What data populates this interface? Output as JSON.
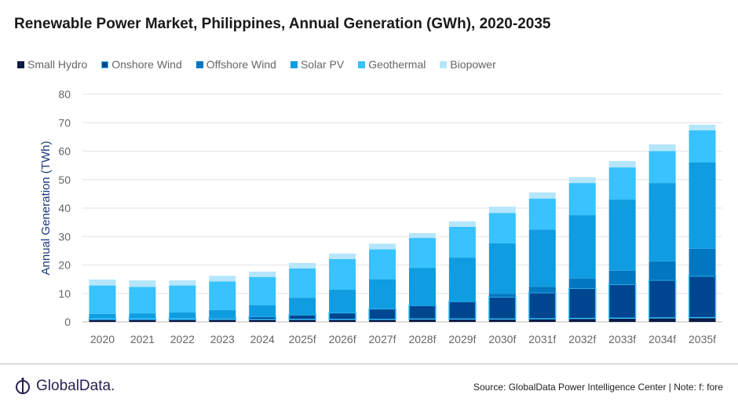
{
  "chart_data": {
    "type": "bar",
    "stacked": true,
    "title": "Renewable Power Market, Philippines, Annual Generation (GWh), 2020-2035",
    "xlabel": "",
    "ylabel": "Annual Generation (TWh)",
    "ylim": [
      0,
      80
    ],
    "yticks": [
      0,
      10,
      20,
      30,
      40,
      50,
      60,
      70,
      80
    ],
    "grid": true,
    "legend_position": "top-left",
    "categories": [
      "2020",
      "2021",
      "2022",
      "2023",
      "2024",
      "2025f",
      "2026f",
      "2027f",
      "2028f",
      "2029f",
      "2030f",
      "2031f",
      "2032f",
      "2033f",
      "2034f",
      "2035f"
    ],
    "series": [
      {
        "name": "Small Hydro",
        "color": "#0c1a45",
        "values": [
          0.9,
          0.9,
          0.9,
          0.9,
          0.9,
          0.9,
          0.9,
          0.9,
          1.0,
          1.0,
          1.0,
          1.1,
          1.2,
          1.3,
          1.4,
          1.5
        ]
      },
      {
        "name": "Onshore Wind",
        "color": "#00458f",
        "border": "#38c1ff",
        "values": [
          0.4,
          0.4,
          0.4,
          0.5,
          0.9,
          1.6,
          2.3,
          3.7,
          4.8,
          6.2,
          7.8,
          9.2,
          10.6,
          11.9,
          13.3,
          14.6
        ]
      },
      {
        "name": "Offshore Wind",
        "color": "#0077c0",
        "values": [
          0,
          0,
          0,
          0,
          0,
          0,
          0,
          0,
          0,
          0,
          1.1,
          2.0,
          3.4,
          4.8,
          6.6,
          9.6
        ]
      },
      {
        "name": "Solar PV",
        "color": "#0f9ce0",
        "values": [
          1.5,
          1.7,
          2.0,
          2.8,
          4.1,
          6.0,
          8.1,
          10.4,
          13.2,
          15.4,
          17.7,
          20.1,
          22.3,
          25.0,
          27.5,
          30.3
        ]
      },
      {
        "name": "Geothermal",
        "color": "#38c2ff",
        "values": [
          10.0,
          9.3,
          9.5,
          10.0,
          9.9,
          10.3,
          10.8,
          10.5,
          10.5,
          10.8,
          10.7,
          10.9,
          11.3,
          11.3,
          11.2,
          11.3
        ]
      },
      {
        "name": "Biopower",
        "color": "#b5e6fb",
        "values": [
          2.1,
          2.3,
          1.8,
          2.0,
          1.9,
          1.9,
          1.9,
          2.0,
          1.7,
          1.9,
          2.2,
          2.2,
          2.1,
          2.2,
          2.4,
          2.0
        ]
      }
    ]
  },
  "footer": {
    "logo_text": "GlobalData.",
    "source": "Source: GlobalData Power Intelligence Center | Note: f: fore"
  }
}
